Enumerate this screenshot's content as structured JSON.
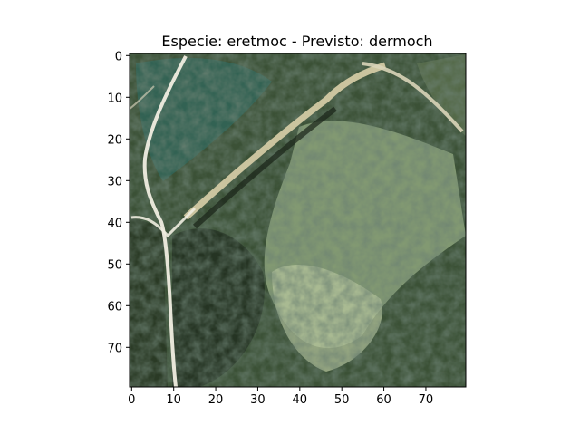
{
  "figure": {
    "title": "Especie: eretmoc - Previsto: dermoch",
    "image_description_icon": "satellite-image-icon"
  },
  "axes": {
    "x_ticks": [
      "0",
      "10",
      "20",
      "30",
      "40",
      "50",
      "60",
      "70"
    ],
    "y_ticks": [
      "0",
      "10",
      "20",
      "30",
      "40",
      "50",
      "60",
      "70"
    ],
    "x_tick_values": [
      0,
      10,
      20,
      30,
      40,
      50,
      60,
      70
    ],
    "y_tick_values": [
      0,
      10,
      20,
      30,
      40,
      50,
      60,
      70
    ],
    "xlim": [
      -0.5,
      79.5
    ],
    "ylim": [
      79.5,
      -0.5
    ],
    "grid": false
  },
  "colors": {
    "background": "#ffffff",
    "frame": "#000000",
    "vegetation_dark": "#1f2b1e",
    "vegetation_mid": "#3f5a3a",
    "vegetation_light": "#9fb38b",
    "teal": "#3c7d72",
    "road": "#e6e0c8",
    "soil": "#8c7b55"
  }
}
